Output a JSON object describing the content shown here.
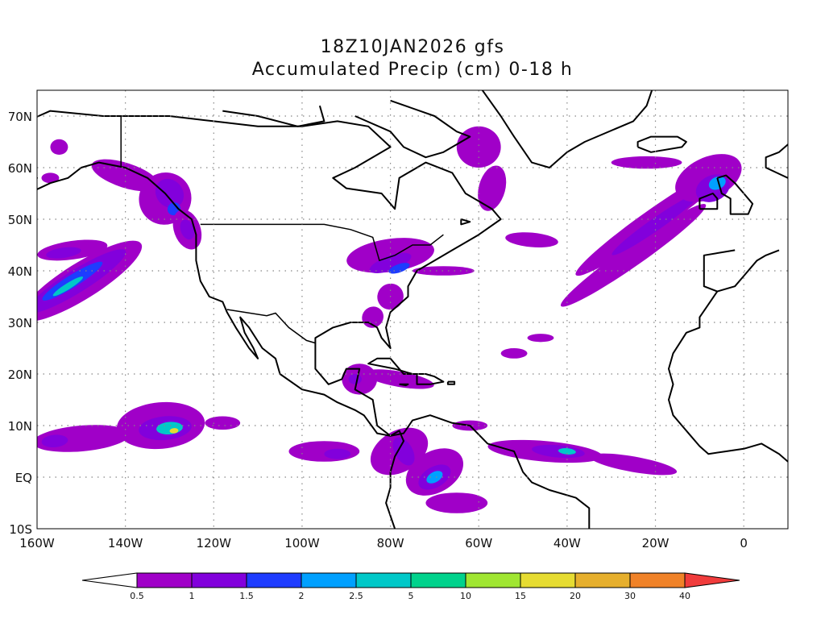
{
  "title": {
    "line1": "18Z10JAN2026 gfs",
    "line2": "Accumulated Precip (cm) 0-18 h"
  },
  "map": {
    "projection": "lat-lon",
    "lon_range": [
      -160,
      10
    ],
    "lat_range": [
      -10,
      75
    ],
    "grid": "dotted",
    "lat_ticks": [
      {
        "value": 70,
        "label": "70N"
      },
      {
        "value": 60,
        "label": "60N"
      },
      {
        "value": 50,
        "label": "50N"
      },
      {
        "value": 40,
        "label": "40N"
      },
      {
        "value": 30,
        "label": "30N"
      },
      {
        "value": 20,
        "label": "20N"
      },
      {
        "value": 10,
        "label": "10N"
      },
      {
        "value": 0,
        "label": "EQ"
      },
      {
        "value": -10,
        "label": "10S"
      }
    ],
    "lon_ticks": [
      {
        "value": -160,
        "label": "160W"
      },
      {
        "value": -140,
        "label": "140W"
      },
      {
        "value": -120,
        "label": "120W"
      },
      {
        "value": -100,
        "label": "100W"
      },
      {
        "value": -80,
        "label": "80W"
      },
      {
        "value": -60,
        "label": "60W"
      },
      {
        "value": -40,
        "label": "40W"
      },
      {
        "value": -20,
        "label": "20W"
      },
      {
        "value": 0,
        "label": "0"
      }
    ]
  },
  "colorbar": {
    "below_color": "#ffffff",
    "above_color": "#f03c3c",
    "colors": [
      "#a000c8",
      "#8200dc",
      "#1e3cff",
      "#00a0ff",
      "#00c8c8",
      "#00d28c",
      "#a0e632",
      "#e6dc32",
      "#e6af2d",
      "#f08228"
    ],
    "labels": [
      "0.5",
      "1",
      "1.5",
      "2",
      "2.5",
      "5",
      "10",
      "15",
      "20",
      "30",
      "40"
    ]
  },
  "precip_regions": [
    {
      "level": 0,
      "lon": -150,
      "lat": 38,
      "rx": 16,
      "ry": 3.5,
      "rot": 32
    },
    {
      "level": 1,
      "lon": -151,
      "lat": 38,
      "rx": 13,
      "ry": 2.2,
      "rot": 32
    },
    {
      "level": 2,
      "lon": -152,
      "lat": 38,
      "rx": 8,
      "ry": 1.2,
      "rot": 32
    },
    {
      "level": 4,
      "lon": -153,
      "lat": 37,
      "rx": 4,
      "ry": 0.6,
      "rot": 32
    },
    {
      "level": 0,
      "lon": -152,
      "lat": 44,
      "rx": 8,
      "ry": 1.8,
      "rot": 8
    },
    {
      "level": 1,
      "lon": -154,
      "lat": 43.5,
      "rx": 4,
      "ry": 1,
      "rot": 8
    },
    {
      "level": 0,
      "lon": -140,
      "lat": 58.5,
      "rx": 8,
      "ry": 2.4,
      "rot": -18
    },
    {
      "level": 0,
      "lon": -131,
      "lat": 54,
      "rx": 6,
      "ry": 5,
      "rot": 40
    },
    {
      "level": 1,
      "lon": -130,
      "lat": 55,
      "rx": 3,
      "ry": 3,
      "rot": 40
    },
    {
      "level": 2,
      "lon": -129,
      "lat": 52,
      "rx": 1.5,
      "ry": 1.2,
      "rot": 40
    },
    {
      "level": 0,
      "lon": -126,
      "lat": 48,
      "rx": 3,
      "ry": 4,
      "rot": 20
    },
    {
      "level": 1,
      "lon": -126,
      "lat": 48,
      "rx": 1.5,
      "ry": 2,
      "rot": 20
    },
    {
      "level": 0,
      "lon": -155,
      "lat": 64,
      "rx": 2,
      "ry": 1.5,
      "rot": 0
    },
    {
      "level": 0,
      "lon": -157,
      "lat": 58,
      "rx": 2,
      "ry": 1,
      "rot": 0
    },
    {
      "level": 0,
      "lon": -80,
      "lat": 43,
      "rx": 10,
      "ry": 3.2,
      "rot": 8
    },
    {
      "level": 0,
      "lon": -68,
      "lat": 40,
      "rx": 7,
      "ry": 0.9,
      "rot": 0
    },
    {
      "level": 0,
      "lon": -80,
      "lat": 35,
      "rx": 3,
      "ry": 2.5,
      "rot": 40
    },
    {
      "level": 0,
      "lon": -84,
      "lat": 31,
      "rx": 2.5,
      "ry": 2,
      "rot": 40
    },
    {
      "level": 1,
      "lon": -80,
      "lat": 41.5,
      "rx": 5,
      "ry": 1.4,
      "rot": 20
    },
    {
      "level": 2,
      "lon": -78,
      "lat": 40.5,
      "rx": 2.5,
      "ry": 0.8,
      "rot": 20
    },
    {
      "level": 0,
      "lon": -60,
      "lat": 64,
      "rx": 5,
      "ry": 4,
      "rot": 0
    },
    {
      "level": 0,
      "lon": -57,
      "lat": 56,
      "rx": 3,
      "ry": 4.5,
      "rot": -15
    },
    {
      "level": 0,
      "lon": -48,
      "lat": 46,
      "rx": 6,
      "ry": 1.4,
      "rot": -5
    },
    {
      "level": 0,
      "lon": -20,
      "lat": 50,
      "rx": 22,
      "ry": 2.2,
      "rot": 35
    },
    {
      "level": 0,
      "lon": -25,
      "lat": 43,
      "rx": 20,
      "ry": 2,
      "rot": 35
    },
    {
      "level": 1,
      "lon": -20,
      "lat": 49,
      "rx": 12,
      "ry": 1.2,
      "rot": 35
    },
    {
      "level": 0,
      "lon": -8,
      "lat": 58,
      "rx": 8,
      "ry": 4,
      "rot": 25
    },
    {
      "level": 1,
      "lon": -7,
      "lat": 56,
      "rx": 4,
      "ry": 2.5,
      "rot": 25
    },
    {
      "level": 3,
      "lon": -6,
      "lat": 57,
      "rx": 2,
      "ry": 1.2,
      "rot": 25
    },
    {
      "level": 0,
      "lon": -22,
      "lat": 61,
      "rx": 8,
      "ry": 1.2,
      "rot": 0
    },
    {
      "level": 0,
      "lon": -52,
      "lat": 24,
      "rx": 3,
      "ry": 1,
      "rot": 0
    },
    {
      "level": 0,
      "lon": -46,
      "lat": 27,
      "rx": 3,
      "ry": 0.8,
      "rot": 0
    },
    {
      "level": 0,
      "lon": -150,
      "lat": 7.5,
      "rx": 11,
      "ry": 2.5,
      "rot": 5
    },
    {
      "level": 1,
      "lon": -156,
      "lat": 7,
      "rx": 3,
      "ry": 1.2,
      "rot": 5
    },
    {
      "level": 0,
      "lon": -132,
      "lat": 10,
      "rx": 10,
      "ry": 4.5,
      "rot": 5
    },
    {
      "level": 1,
      "lon": -131,
      "lat": 9.5,
      "rx": 6,
      "ry": 2.3,
      "rot": 5
    },
    {
      "level": 4,
      "lon": -130,
      "lat": 9.5,
      "rx": 3,
      "ry": 1.2,
      "rot": 5
    },
    {
      "level": 7,
      "lon": -129,
      "lat": 9,
      "rx": 1,
      "ry": 0.5,
      "rot": 5
    },
    {
      "level": 0,
      "lon": -118,
      "lat": 10.5,
      "rx": 4,
      "ry": 1.3,
      "rot": 0
    },
    {
      "level": 0,
      "lon": -95,
      "lat": 5,
      "rx": 8,
      "ry": 2,
      "rot": 0
    },
    {
      "level": 1,
      "lon": -92,
      "lat": 4.5,
      "rx": 3,
      "ry": 1,
      "rot": 0
    },
    {
      "level": 0,
      "lon": -78,
      "lat": 5,
      "rx": 7,
      "ry": 4,
      "rot": 30
    },
    {
      "level": 1,
      "lon": -77,
      "lat": 5,
      "rx": 2,
      "ry": 3,
      "rot": 30
    },
    {
      "level": 0,
      "lon": -70,
      "lat": 1,
      "rx": 7,
      "ry": 4,
      "rot": 30
    },
    {
      "level": 1,
      "lon": -70,
      "lat": 0,
      "rx": 4,
      "ry": 2,
      "rot": 30
    },
    {
      "level": 3,
      "lon": -70,
      "lat": 0,
      "rx": 2,
      "ry": 1,
      "rot": 30
    },
    {
      "level": 0,
      "lon": -65,
      "lat": -5,
      "rx": 7,
      "ry": 2,
      "rot": 0
    },
    {
      "level": 0,
      "lon": -45,
      "lat": 5,
      "rx": 13,
      "ry": 2,
      "rot": -5
    },
    {
      "level": 1,
      "lon": -42,
      "lat": 5,
      "rx": 6,
      "ry": 1.2,
      "rot": -5
    },
    {
      "level": 4,
      "lon": -40,
      "lat": 5,
      "rx": 2,
      "ry": 0.6,
      "rot": -5
    },
    {
      "level": 0,
      "lon": -25,
      "lat": 2.5,
      "rx": 10,
      "ry": 1.5,
      "rot": -10
    },
    {
      "level": 0,
      "lon": -87,
      "lat": 19,
      "rx": 4,
      "ry": 3,
      "rot": 0
    },
    {
      "level": 1,
      "lon": -88,
      "lat": 19,
      "rx": 1.5,
      "ry": 1,
      "rot": 0
    },
    {
      "level": 0,
      "lon": -78,
      "lat": 19,
      "rx": 8,
      "ry": 1.5,
      "rot": -10
    },
    {
      "level": 0,
      "lon": -62,
      "lat": 10,
      "rx": 4,
      "ry": 1,
      "rot": 0
    }
  ]
}
